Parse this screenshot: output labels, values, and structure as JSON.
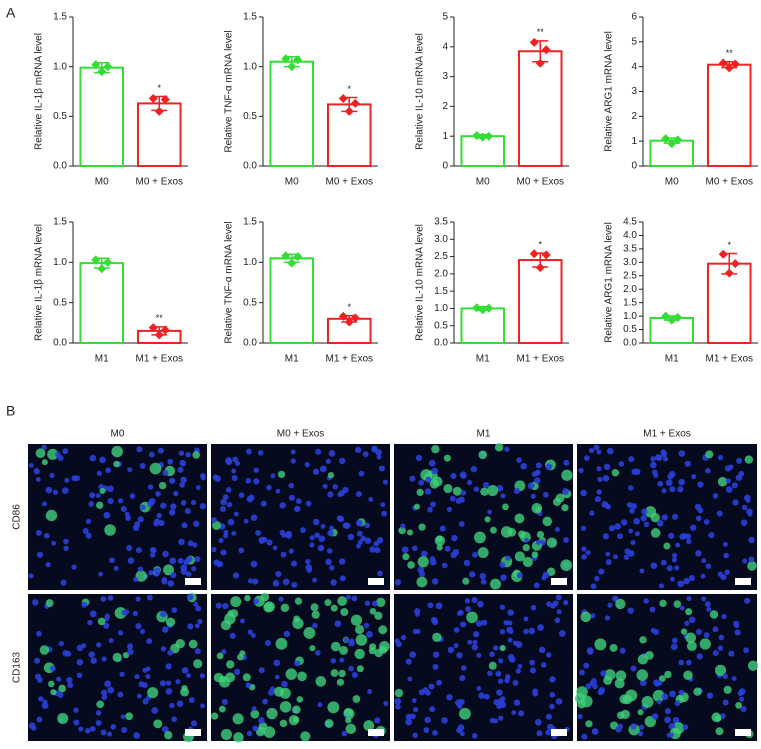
{
  "panel_labels": [
    "A",
    "B"
  ],
  "images": {
    "columns": [
      "M0",
      "M0 + Exos",
      "M1",
      "M1 + Exos"
    ],
    "rows": [
      "CD86",
      "CD163"
    ]
  },
  "chart_data": [
    {
      "type": "bar",
      "y_label": "Relative IL-1β mRNA level",
      "categories": [
        "M0",
        "M0 + Exos"
      ],
      "colors": [
        "#33dd33",
        "#ee2222"
      ],
      "values": [
        0.99,
        0.63
      ],
      "errors": [
        0.05,
        0.07
      ],
      "points": [
        [
          1.02,
          0.95,
          1.0
        ],
        [
          0.68,
          0.55,
          0.67
        ]
      ],
      "significance": "*",
      "ylim": [
        0,
        1.5
      ],
      "yticks": [
        {
          "value": 0,
          "label": "0.0"
        },
        0.5,
        {
          "value": 1,
          "label": "1.0"
        },
        1.5
      ]
    },
    {
      "type": "bar",
      "y_label": "Relative TNF-α mRNA level",
      "categories": [
        "M0",
        "M0 + Exos"
      ],
      "colors": [
        "#33dd33",
        "#ee2222"
      ],
      "values": [
        1.05,
        0.62
      ],
      "errors": [
        0.05,
        0.07
      ],
      "points": [
        [
          1.08,
          1.0,
          1.07
        ],
        [
          0.68,
          0.55,
          0.63
        ]
      ],
      "significance": "*",
      "ylim": [
        0,
        1.5
      ],
      "yticks": [
        {
          "value": 0,
          "label": "0.0"
        },
        0.5,
        {
          "value": 1,
          "label": "1.0"
        },
        1.5
      ]
    },
    {
      "type": "bar",
      "y_label": "Relative IL-10 mRNA level",
      "categories": [
        "M0",
        "M0 + Exos"
      ],
      "colors": [
        "#33dd33",
        "#ee2222"
      ],
      "values": [
        1.0,
        3.85
      ],
      "errors": [
        0.05,
        0.35
      ],
      "points": [
        [
          1.02,
          0.97,
          1.0
        ],
        [
          4.15,
          3.45,
          3.9
        ]
      ],
      "significance": "**",
      "ylim": [
        0,
        5
      ],
      "yticks": [
        0,
        1,
        2,
        3,
        4,
        5
      ]
    },
    {
      "type": "bar",
      "y_label": "Relative ARG1 mRNA level",
      "categories": [
        "M0",
        "M0 + Exos"
      ],
      "colors": [
        "#33dd33",
        "#ee2222"
      ],
      "values": [
        1.02,
        4.08
      ],
      "errors": [
        0.1,
        0.12
      ],
      "points": [
        [
          1.1,
          0.9,
          1.05
        ],
        [
          4.15,
          3.95,
          4.1
        ]
      ],
      "significance": "**",
      "ylim": [
        0,
        6
      ],
      "yticks": [
        0,
        1,
        2,
        3,
        4,
        5,
        6
      ]
    },
    {
      "type": "bar",
      "y_label": "Relative IL-1β mRNA level",
      "categories": [
        "M1",
        "M1 + Exos"
      ],
      "colors": [
        "#33dd33",
        "#ee2222"
      ],
      "values": [
        0.99,
        0.15
      ],
      "errors": [
        0.06,
        0.05
      ],
      "points": [
        [
          1.03,
          0.92,
          1.0
        ],
        [
          0.19,
          0.1,
          0.16
        ]
      ],
      "significance": "**",
      "ylim": [
        0,
        1.5
      ],
      "yticks": [
        {
          "value": 0,
          "label": "0.0"
        },
        0.5,
        {
          "value": 1,
          "label": "1.0"
        },
        1.5
      ]
    },
    {
      "type": "bar",
      "y_label": "Relative TNF-α mRNA level",
      "categories": [
        "M1",
        "M1 + Exos"
      ],
      "colors": [
        "#33dd33",
        "#ee2222"
      ],
      "values": [
        1.05,
        0.3
      ],
      "errors": [
        0.05,
        0.04
      ],
      "points": [
        [
          1.08,
          0.99,
          1.07
        ],
        [
          0.33,
          0.26,
          0.31
        ]
      ],
      "significance": "*",
      "ylim": [
        0,
        1.5
      ],
      "yticks": [
        {
          "value": 0,
          "label": "0.0"
        },
        0.5,
        {
          "value": 1,
          "label": "1.0"
        },
        1.5
      ]
    },
    {
      "type": "bar",
      "y_label": "Relative IL-10 mRNA level",
      "categories": [
        "M1",
        "M1 + Exos"
      ],
      "colors": [
        "#33dd33",
        "#ee2222"
      ],
      "values": [
        1.0,
        2.4
      ],
      "errors": [
        0.05,
        0.2
      ],
      "points": [
        [
          1.02,
          0.96,
          1.01
        ],
        [
          2.58,
          2.18,
          2.55
        ]
      ],
      "significance": "*",
      "ylim": [
        0,
        3.5
      ],
      "yticks": [
        {
          "value": 0,
          "label": "0.0"
        },
        0.5,
        {
          "value": 1,
          "label": "1.0"
        },
        1.5,
        {
          "value": 2,
          "label": "2.0"
        },
        2.5,
        {
          "value": 3,
          "label": "3.0"
        },
        3.5
      ]
    },
    {
      "type": "bar",
      "y_label": "Relative ARG1 mRNA level",
      "categories": [
        "M1",
        "M1 + Exos"
      ],
      "colors": [
        "#33dd33",
        "#ee2222"
      ],
      "values": [
        0.93,
        2.95
      ],
      "errors": [
        0.08,
        0.38
      ],
      "points": [
        [
          1.0,
          0.85,
          0.95
        ],
        [
          3.3,
          2.6,
          2.95
        ]
      ],
      "significance": "*",
      "ylim": [
        0,
        4.5
      ],
      "yticks": [
        {
          "value": 0,
          "label": "0.0"
        },
        0.5,
        {
          "value": 1,
          "label": "1.0"
        },
        1.5,
        {
          "value": 2,
          "label": "2.0"
        },
        2.5,
        {
          "value": 3,
          "label": "3.0"
        },
        3.5,
        {
          "value": 4,
          "label": "4.0"
        },
        4.5
      ]
    }
  ]
}
